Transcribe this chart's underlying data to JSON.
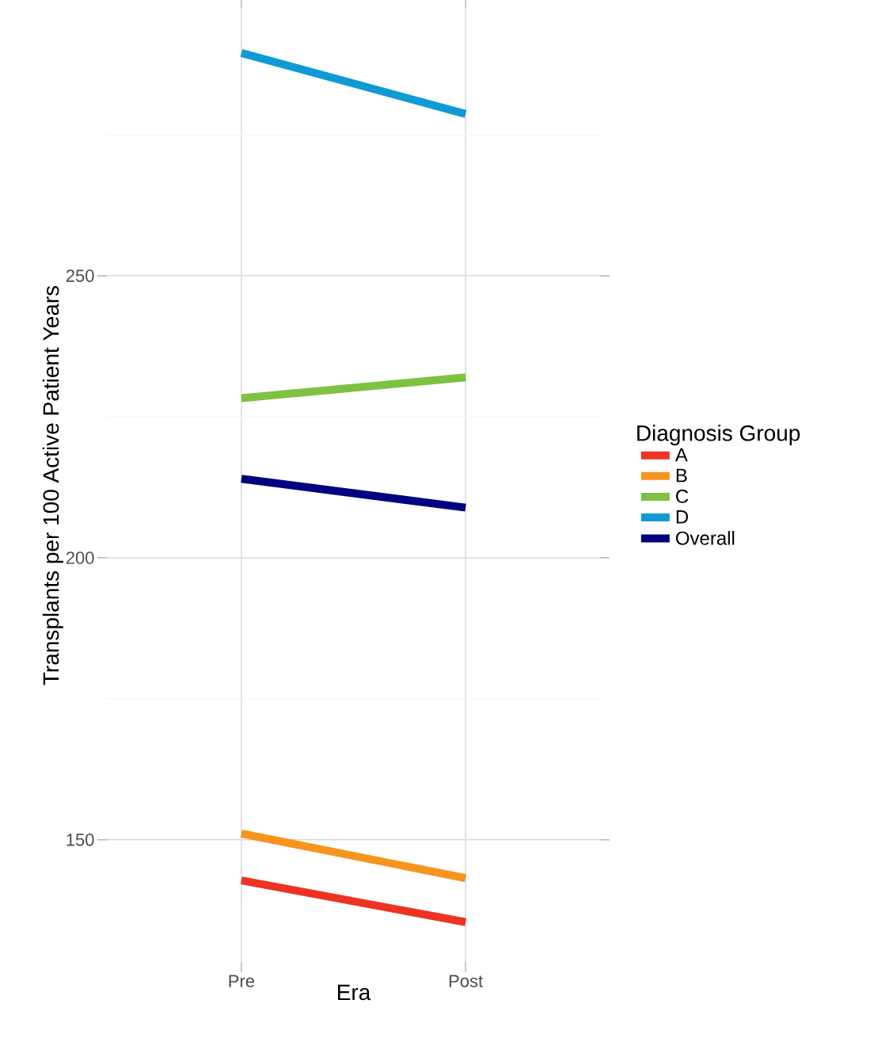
{
  "chart_data": {
    "type": "line",
    "xlabel": "Era",
    "ylabel": "Transplants per 100 Active Patient Years",
    "legend_title": "Diagnosis Group",
    "categories": [
      "Pre",
      "Post"
    ],
    "series": [
      {
        "name": "A",
        "color": "#ee3224",
        "values": [
          142.8,
          135.4
        ]
      },
      {
        "name": "B",
        "color": "#f7941d",
        "values": [
          151.1,
          143.2
        ]
      },
      {
        "name": "C",
        "color": "#7dc242",
        "values": [
          228.3,
          232.0
        ]
      },
      {
        "name": "D",
        "color": "#0f9ad6",
        "values": [
          289.5,
          278.7
        ]
      },
      {
        "name": "Overall",
        "color": "#000080",
        "values": [
          214.0,
          208.9
        ]
      }
    ],
    "ylim": [
      128.2,
      297.5
    ],
    "yticks": [
      150,
      {
        "value": 175,
        "label": null
      },
      200,
      {
        "value": 225,
        "label": null
      },
      250,
      {
        "value": 275,
        "label": null
      }
    ],
    "grid": true,
    "legend": "right",
    "marker": "none",
    "line_style": "solid"
  }
}
